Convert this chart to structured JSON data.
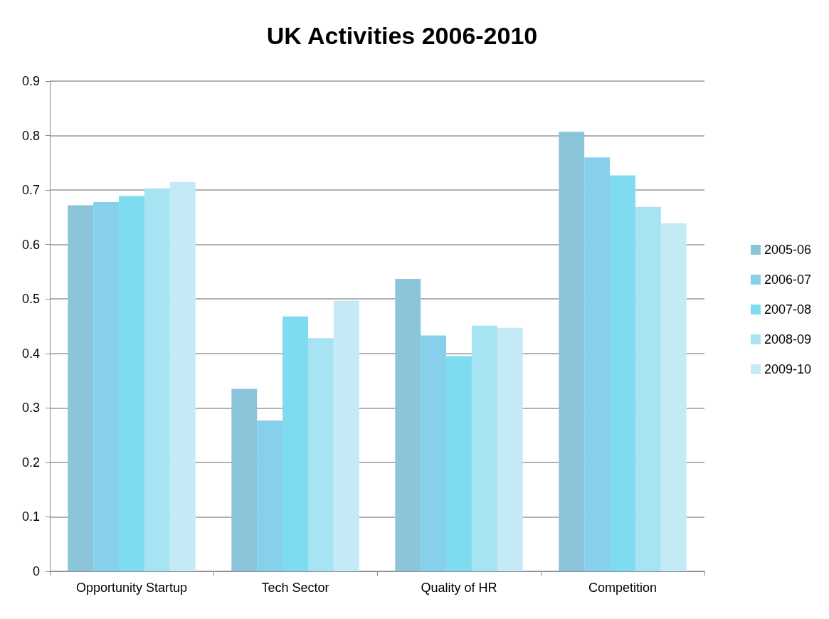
{
  "chart_data": {
    "type": "bar",
    "title": "UK Activities 2006-2010",
    "categories": [
      "Opportunity Startup",
      "Tech Sector",
      "Quality of HR",
      "Competition"
    ],
    "series": [
      {
        "name": "2005-06",
        "color": "#8cc4da",
        "values": [
          0.672,
          0.335,
          0.537,
          0.807
        ]
      },
      {
        "name": "2006-07",
        "color": "#86d0ec",
        "values": [
          0.678,
          0.277,
          0.433,
          0.76
        ]
      },
      {
        "name": "2007-08",
        "color": "#7edbf0",
        "values": [
          0.689,
          0.468,
          0.395,
          0.727
        ]
      },
      {
        "name": "2008-09",
        "color": "#a6e3f3",
        "values": [
          0.703,
          0.428,
          0.451,
          0.669
        ]
      },
      {
        "name": "2009-10",
        "color": "#c4ebf5",
        "values": [
          0.715,
          0.497,
          0.447,
          0.639
        ]
      }
    ],
    "ylim": [
      0,
      0.9
    ],
    "yticks": [
      0,
      0.1,
      0.2,
      0.3,
      0.4,
      0.5,
      0.6,
      0.7,
      0.8,
      0.9
    ],
    "grid": "y",
    "legend": "right"
  }
}
